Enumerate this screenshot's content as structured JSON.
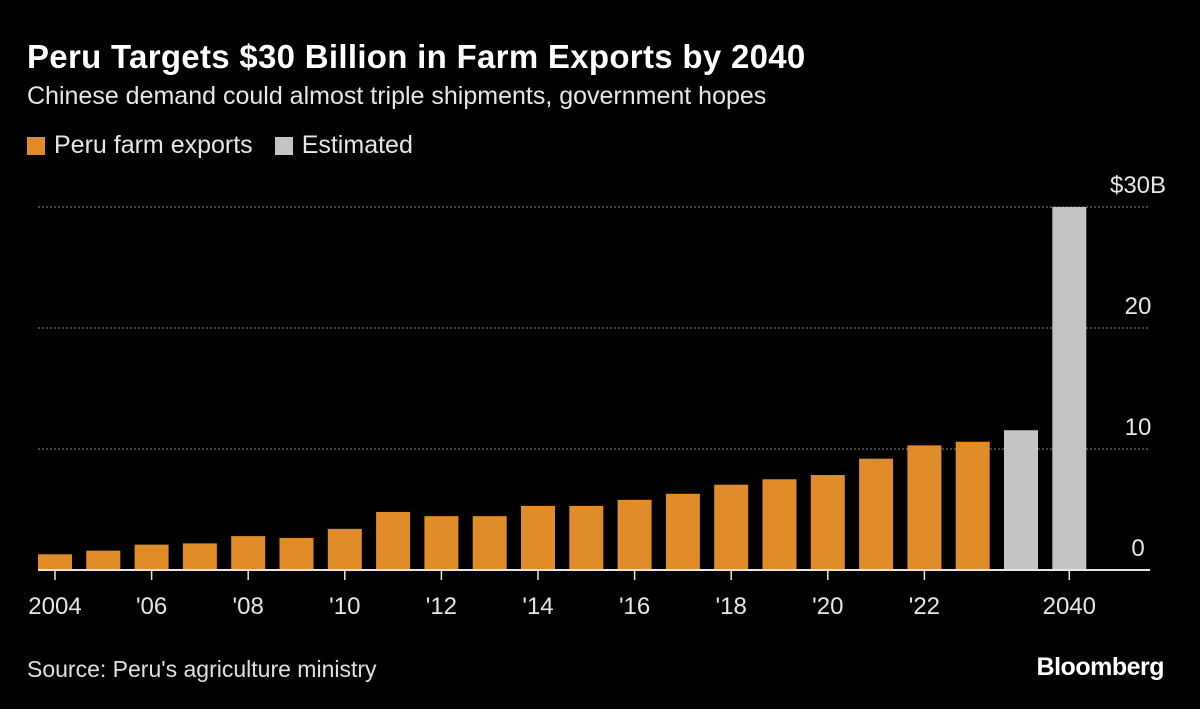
{
  "chart_data": {
    "type": "bar",
    "title": "Peru Targets $30 Billion in Farm Exports by 2040",
    "subtitle": "Chinese demand could almost triple shipments, government hopes",
    "categories": [
      "2004",
      "2005",
      "2006",
      "2007",
      "2008",
      "2009",
      "2010",
      "2011",
      "2012",
      "2013",
      "2014",
      "2015",
      "2016",
      "2017",
      "2018",
      "2019",
      "2020",
      "2021",
      "2022",
      "2023",
      "",
      "2040"
    ],
    "x_tick_labels": [
      "2004",
      "",
      "'06",
      "",
      "'08",
      "",
      "'10",
      "",
      "'12",
      "",
      "'14",
      "",
      "'16",
      "",
      "'18",
      "",
      "'20",
      "",
      "'22",
      "",
      "",
      "2040"
    ],
    "series": [
      {
        "name": "Peru farm exports",
        "color": "#e08c28",
        "values": [
          1.3,
          1.6,
          2.1,
          2.2,
          2.8,
          2.65,
          3.4,
          4.8,
          4.45,
          4.45,
          5.3,
          5.3,
          5.8,
          6.3,
          7.05,
          7.5,
          7.85,
          9.2,
          10.3,
          10.6,
          null,
          null
        ]
      },
      {
        "name": "Estimated",
        "color": "#c4c4c4",
        "values": [
          null,
          null,
          null,
          null,
          null,
          null,
          null,
          null,
          null,
          null,
          null,
          null,
          null,
          null,
          null,
          null,
          null,
          null,
          null,
          null,
          11.55,
          30
        ]
      }
    ],
    "y_ticks": [
      0,
      10,
      20,
      30
    ],
    "y_tick_labels": [
      "0",
      "10",
      "20",
      "$30B"
    ],
    "ylim": [
      0,
      30
    ],
    "grid": true,
    "legend_position": "top-left",
    "y_axis_side": "right"
  },
  "source": "Source: Peru's agriculture ministry",
  "logo": "Bloomberg"
}
